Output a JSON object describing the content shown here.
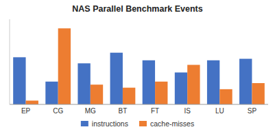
{
  "chart_data": {
    "type": "bar",
    "title": "NAS Parallel Benchmark Events",
    "categories": [
      "EP",
      "CG",
      "MG",
      "BT",
      "FT",
      "IS",
      "LU",
      "SP"
    ],
    "series": [
      {
        "name": "instructions",
        "color": "#4472c4",
        "values": [
          0.62,
          0.3,
          0.54,
          0.68,
          0.58,
          0.42,
          0.58,
          0.6
        ]
      },
      {
        "name": "cache-misses",
        "color": "#ed7d31",
        "values": [
          0.05,
          1.0,
          0.26,
          0.22,
          0.3,
          0.52,
          0.2,
          0.28
        ]
      }
    ],
    "ylim": [
      0,
      1.12
    ],
    "grid": false,
    "legend": "bottom",
    "tick_labels": "x"
  }
}
